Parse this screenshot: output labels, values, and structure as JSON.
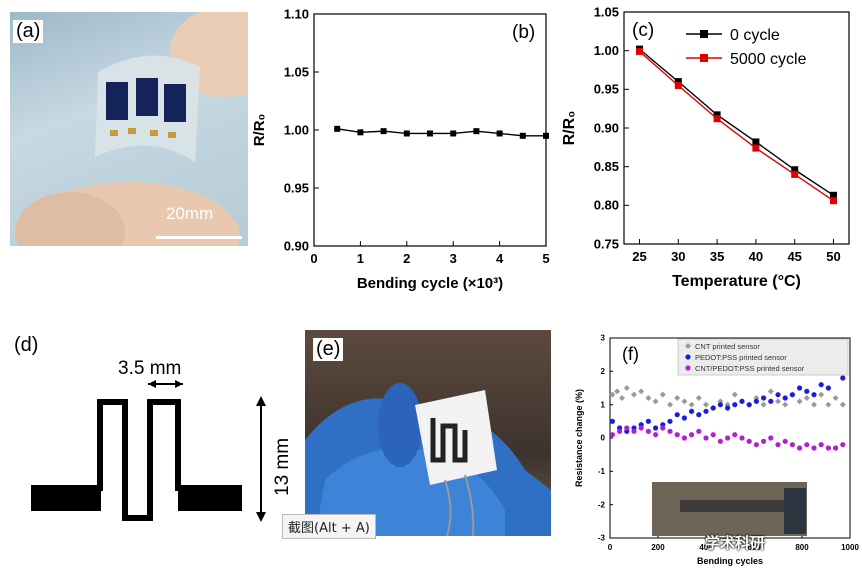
{
  "panels": {
    "a": {
      "label": "(a)",
      "scale_text": "20mm"
    },
    "b": {
      "label": "(b)"
    },
    "c": {
      "label": "(c)"
    },
    "d": {
      "label": "(d)",
      "width_text": "3.5 mm",
      "height_text": "13 mm"
    },
    "e": {
      "label": "(e)"
    },
    "f": {
      "label": "(f)"
    }
  },
  "tooltip": "截图(Alt + A)",
  "watermark": "学术科研",
  "chart_data": [
    {
      "id": "b",
      "type": "line",
      "xlabel": "Bending cycle (×10³)",
      "ylabel": "R/R₀",
      "xlim": [
        0,
        5
      ],
      "ylim": [
        0.9,
        1.1
      ],
      "xticks": [
        "0",
        "1",
        "2",
        "3",
        "4",
        "5"
      ],
      "yticks": [
        "0.90",
        "0.95",
        "1.00",
        "1.05",
        "1.10"
      ],
      "series": [
        {
          "x": [
            0.5,
            1.0,
            1.5,
            2.0,
            2.5,
            3.0,
            3.5,
            4.0,
            4.5,
            5.0
          ],
          "y": [
            1.001,
            0.998,
            0.999,
            0.997,
            0.997,
            0.997,
            0.999,
            0.997,
            0.995,
            0.995
          ],
          "color": "#000000"
        }
      ]
    },
    {
      "id": "c",
      "type": "line",
      "xlabel": "Temperature (°C)",
      "ylabel": "R/R₀",
      "xlim": [
        23,
        52
      ],
      "ylim": [
        0.75,
        1.05
      ],
      "xticks": [
        "25",
        "30",
        "35",
        "40",
        "45",
        "50"
      ],
      "yticks": [
        "0.75",
        "0.80",
        "0.85",
        "0.90",
        "0.95",
        "1.00",
        "1.05"
      ],
      "legend": "top-right",
      "series": [
        {
          "name": "0 cycle",
          "x": [
            25,
            30,
            35,
            40,
            45,
            50
          ],
          "y": [
            1.002,
            0.96,
            0.917,
            0.882,
            0.846,
            0.813
          ],
          "color": "#000000"
        },
        {
          "name": "5000 cycle",
          "x": [
            25,
            30,
            35,
            40,
            45,
            50
          ],
          "y": [
            0.999,
            0.955,
            0.912,
            0.874,
            0.84,
            0.806
          ],
          "color": "#e00000"
        }
      ]
    },
    {
      "id": "f",
      "type": "scatter",
      "xlabel": "Bending cycles",
      "ylabel": "Resistance change (%)",
      "xlim": [
        0,
        1000
      ],
      "ylim": [
        -3,
        3
      ],
      "xticks": [
        "0",
        "200",
        "400",
        "600",
        "800",
        "1000"
      ],
      "yticks": [
        "-3",
        "-2",
        "-1",
        "0",
        "1",
        "2",
        "3"
      ],
      "legend": "top-right",
      "series": [
        {
          "name": "CNT printed sensor",
          "color": "#9a9a9a",
          "marker": "diamond",
          "x": [
            10,
            30,
            50,
            70,
            100,
            130,
            160,
            190,
            220,
            250,
            280,
            310,
            340,
            370,
            400,
            430,
            460,
            490,
            520,
            550,
            580,
            610,
            640,
            670,
            700,
            730,
            760,
            790,
            820,
            850,
            880,
            910,
            940,
            970
          ],
          "y": [
            1.3,
            1.4,
            1.2,
            1.5,
            1.3,
            1.4,
            1.2,
            1.1,
            1.3,
            1.0,
            1.2,
            1.1,
            1.0,
            1.2,
            1.0,
            0.9,
            1.1,
            1.0,
            1.3,
            1.1,
            1.0,
            1.2,
            1.0,
            1.4,
            1.1,
            1.0,
            1.3,
            1.1,
            1.2,
            1.0,
            1.3,
            1.0,
            1.2,
            1.0
          ]
        },
        {
          "name": "PEDOT:PSS printed sensor",
          "color": "#1c1ce0",
          "marker": "circle",
          "x": [
            10,
            40,
            70,
            100,
            130,
            160,
            190,
            220,
            250,
            280,
            310,
            340,
            370,
            400,
            430,
            460,
            490,
            520,
            550,
            580,
            610,
            640,
            670,
            700,
            730,
            760,
            790,
            820,
            850,
            880,
            910,
            940,
            970
          ],
          "y": [
            0.5,
            0.3,
            0.2,
            0.3,
            0.4,
            0.5,
            0.3,
            0.4,
            0.5,
            0.7,
            0.6,
            0.8,
            0.7,
            0.8,
            0.9,
            1.0,
            0.9,
            1.0,
            1.1,
            1.0,
            1.1,
            1.2,
            1.1,
            1.3,
            1.2,
            1.3,
            1.5,
            1.4,
            1.3,
            1.6,
            1.5,
            2.1,
            1.8
          ]
        },
        {
          "name": "CNT/PEDOT:PSS printed sensor",
          "color": "#b020d0",
          "marker": "circle",
          "x": [
            10,
            40,
            70,
            100,
            130,
            160,
            190,
            220,
            250,
            280,
            310,
            340,
            370,
            400,
            430,
            460,
            490,
            520,
            550,
            580,
            610,
            640,
            670,
            700,
            730,
            760,
            790,
            820,
            850,
            880,
            910,
            940,
            970
          ],
          "y": [
            0.1,
            0.2,
            0.3,
            0.2,
            0.3,
            0.2,
            0.1,
            0.3,
            0.2,
            0.1,
            0.0,
            0.1,
            0.2,
            0.0,
            0.1,
            -0.1,
            0.0,
            0.1,
            0.0,
            -0.1,
            -0.2,
            -0.1,
            0.0,
            -0.2,
            -0.1,
            -0.2,
            -0.3,
            -0.2,
            -0.3,
            -0.2,
            -0.3,
            -0.3,
            -0.2
          ]
        }
      ]
    }
  ]
}
